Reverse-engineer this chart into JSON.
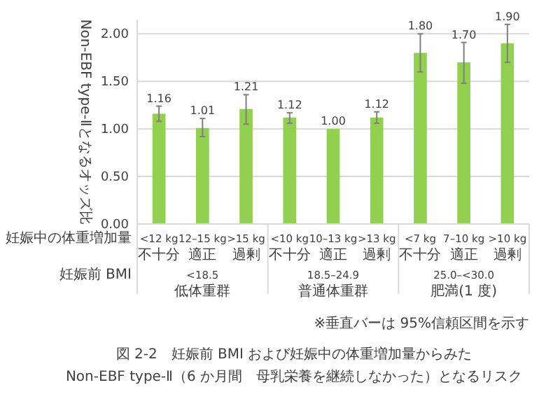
{
  "chart_data": {
    "type": "bar",
    "title": "図 2-2　妊娠前 BMI および妊娠中の体重増加量からみた",
    "subtitle": "Non-EBF type-Ⅱ（6 か月間　母乳栄養を継続しなかった）となるリスク",
    "ylabel": "Non-EBF type-Ⅱとなるオッズ比",
    "categories": [
      "<12 kg\n不十分",
      "12–15 kg\n適正",
      ">15 kg\n過剰",
      "<10 kg\n不十分",
      "10–13 kg\n適正",
      ">13 kg\n過剰",
      "<7 kg\n不十分",
      "7–10 kg\n適正",
      ">10 kg\n過剰"
    ],
    "values": [
      1.16,
      1.01,
      1.21,
      1.12,
      1.0,
      1.12,
      1.8,
      1.7,
      1.9
    ],
    "errors": [
      [
        1.08,
        1.24
      ],
      [
        0.92,
        1.11
      ],
      [
        1.05,
        1.36
      ],
      [
        1.06,
        1.17
      ],
      null,
      [
        1.06,
        1.18
      ],
      [
        1.6,
        2.0
      ],
      [
        1.48,
        1.91
      ],
      [
        1.7,
        2.1
      ]
    ],
    "color": "#92d050",
    "value_labels": [
      "1.16",
      "1.01",
      "1.21",
      "1.12",
      "1.00",
      "1.12",
      "1.80",
      "1.70",
      "1.90"
    ],
    "ylim": [
      0,
      2.15
    ],
    "yticks": [
      {
        "value": 0,
        "label": "0.00"
      },
      {
        "value": 0.5,
        "label": "0.50"
      },
      {
        "value": 1,
        "label": "1.00"
      },
      {
        "value": 1.5,
        "label": "1.50"
      },
      {
        "value": 2,
        "label": "2.00"
      }
    ],
    "grid": "y",
    "annotations": [
      "妊娠中の体重増加量",
      "妊娠前 BMI",
      "<18.5\n低体重群",
      "18.5–24.9\n普通体重群",
      "25.0–<30.0\n肥満(1 度)",
      "※垂直バーは 95%信頼区間を示す"
    ]
  }
}
